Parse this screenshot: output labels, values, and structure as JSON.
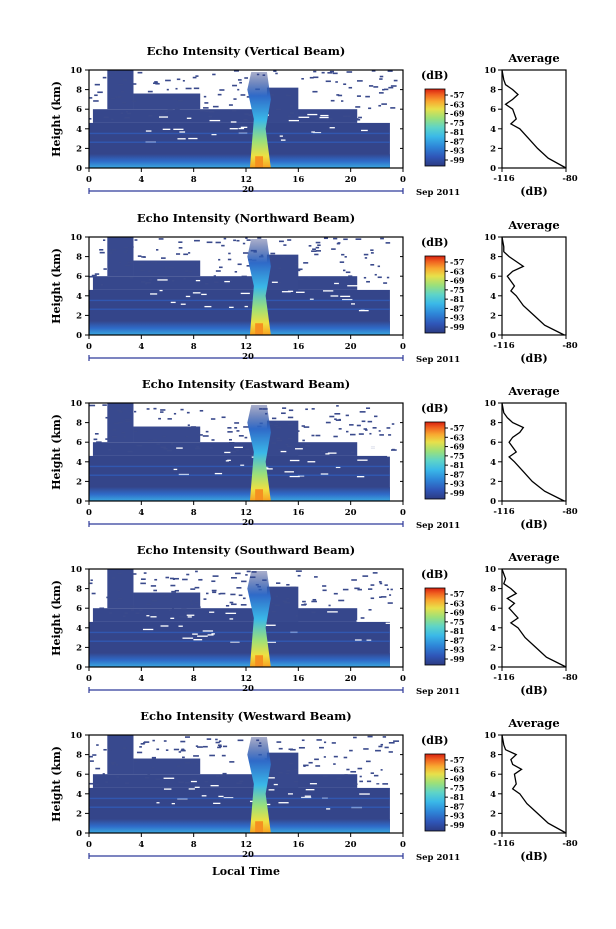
{
  "figure": {
    "x_axis_label": "Local Time",
    "colorbar_unit": "(dB)",
    "colorbar_ticks": [
      "-57",
      "-63",
      "-69",
      "-75",
      "-81",
      "-87",
      "-93",
      "-99"
    ],
    "x_ticks": [
      "0",
      "4",
      "8",
      "12",
      "16",
      "20",
      "0"
    ],
    "y_ticks": [
      "0",
      "2",
      "4",
      "6",
      "8",
      "10"
    ],
    "y_label": "Height (km)",
    "day_label": "20",
    "month_label": "Sep 2011",
    "avg_title": "Average",
    "avg_xticks": [
      "-116",
      "-80"
    ],
    "avg_xlabel": "(dB)",
    "colors": {
      "background_echo": "#3a4a8c",
      "colormap": [
        "#2c3a82",
        "#2f56b8",
        "#2e86d8",
        "#3ab8e8",
        "#5ed4c8",
        "#9be07a",
        "#e8e04a",
        "#f8a830",
        "#f06020",
        "#d82010"
      ]
    }
  },
  "chart_data": [
    {
      "type": "heatmap",
      "title": "Echo Intensity (Vertical Beam)",
      "xlabel": "",
      "ylabel": "Height (km)",
      "xlim": [
        0,
        24
      ],
      "ylim": [
        0,
        10
      ],
      "colorbar_range_db": [
        -99,
        -57
      ],
      "profile": {
        "title": "Average",
        "xlabel": "(dB)",
        "xlim": [
          -116,
          -80
        ],
        "height_km": [
          0,
          1,
          2,
          3,
          4,
          4.5,
          5,
          6,
          6.5,
          7,
          7.5,
          8,
          8.5,
          9,
          10
        ],
        "value_db": [
          -80,
          -90,
          -96,
          -101,
          -106,
          -111,
          -108,
          -110,
          -114,
          -110,
          -107,
          -110,
          -114,
          -115,
          -116
        ]
      }
    },
    {
      "type": "heatmap",
      "title": "Echo Intensity (Northward Beam)",
      "xlabel": "",
      "ylabel": "Height (km)",
      "xlim": [
        0,
        24
      ],
      "ylim": [
        0,
        10
      ],
      "colorbar_range_db": [
        -99,
        -57
      ],
      "profile": {
        "title": "Average",
        "xlabel": "(dB)",
        "xlim": [
          -116,
          -80
        ],
        "height_km": [
          0,
          1,
          2,
          3,
          4,
          4.5,
          5,
          6,
          6.5,
          7,
          7.5,
          8,
          8.5,
          9,
          10
        ],
        "value_db": [
          -81,
          -92,
          -98,
          -104,
          -108,
          -111,
          -109,
          -113,
          -110,
          -104,
          -108,
          -112,
          -115,
          -115,
          -116
        ]
      }
    },
    {
      "type": "heatmap",
      "title": "Echo Intensity (Eastward Beam)",
      "xlabel": "",
      "ylabel": "Height (km)",
      "xlim": [
        0,
        24
      ],
      "ylim": [
        0,
        10
      ],
      "colorbar_range_db": [
        -99,
        -57
      ],
      "profile": {
        "title": "Average",
        "xlabel": "(dB)",
        "xlim": [
          -116,
          -80
        ],
        "height_km": [
          0,
          1,
          2,
          3,
          4,
          4.5,
          5,
          6,
          6.5,
          7,
          7.5,
          8,
          8.5,
          9,
          10
        ],
        "value_db": [
          -81,
          -92,
          -99,
          -104,
          -109,
          -112,
          -108,
          -112,
          -110,
          -106,
          -104,
          -110,
          -113,
          -115,
          -116
        ]
      }
    },
    {
      "type": "heatmap",
      "title": "Echo Intensity (Southward Beam)",
      "xlabel": "",
      "ylabel": "Height (km)",
      "xlim": [
        0,
        24
      ],
      "ylim": [
        0,
        10
      ],
      "colorbar_range_db": [
        -99,
        -57
      ],
      "profile": {
        "title": "Average",
        "xlabel": "(dB)",
        "xlim": [
          -116,
          -80
        ],
        "height_km": [
          0,
          1,
          2,
          3,
          4,
          4.5,
          5,
          6,
          6.5,
          7,
          7.5,
          8,
          8.5,
          9,
          10
        ],
        "value_db": [
          -80,
          -91,
          -97,
          -103,
          -107,
          -111,
          -107,
          -112,
          -109,
          -113,
          -108,
          -111,
          -115,
          -114,
          -116
        ]
      }
    },
    {
      "type": "heatmap",
      "title": "Echo Intensity (Westward Beam)",
      "xlabel": "Local Time",
      "ylabel": "Height (km)",
      "xlim": [
        0,
        24
      ],
      "ylim": [
        0,
        10
      ],
      "colorbar_range_db": [
        -99,
        -57
      ],
      "profile": {
        "title": "Average",
        "xlabel": "(dB)",
        "xlim": [
          -116,
          -80
        ],
        "height_km": [
          0,
          1,
          2,
          3,
          4,
          4.5,
          5,
          6,
          6.5,
          7,
          7.5,
          8,
          8.5,
          9,
          10
        ],
        "value_db": [
          -80,
          -90,
          -96,
          -102,
          -106,
          -110,
          -108,
          -109,
          -105,
          -110,
          -111,
          -108,
          -114,
          -115,
          -116
        ]
      }
    }
  ]
}
